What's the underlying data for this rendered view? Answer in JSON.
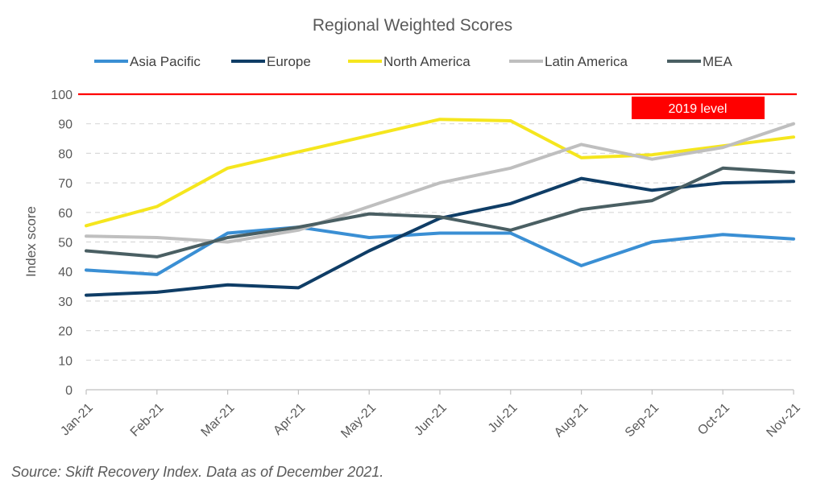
{
  "chart_data": {
    "type": "line",
    "title": "Regional Weighted Scores",
    "ylabel": "Index score",
    "xlabel": "",
    "ylim": [
      0,
      100
    ],
    "yticks": [
      0,
      10,
      20,
      30,
      40,
      50,
      60,
      70,
      80,
      90,
      100
    ],
    "grid": true,
    "legend_position": "top",
    "categories": [
      "Jan-21",
      "Feb-21",
      "Mar-21",
      "Apr-21",
      "May-21",
      "Jun-21",
      "Jul-21",
      "Aug-21",
      "Sep-21",
      "Oct-21",
      "Nov-21"
    ],
    "series": [
      {
        "name": "Asia Pacific",
        "color": "#3a8fd4",
        "values": [
          40.5,
          39,
          53,
          55,
          51.5,
          53,
          53,
          42,
          50,
          52.5,
          51
        ]
      },
      {
        "name": "Europe",
        "color": "#0f3d66",
        "values": [
          32,
          33,
          35.5,
          34.5,
          47,
          58,
          63,
          71.5,
          67.5,
          70,
          70.5
        ]
      },
      {
        "name": "North America",
        "color": "#f5e61e",
        "values": [
          55.5,
          62,
          75,
          80.5,
          86,
          91.5,
          91,
          78.5,
          79.5,
          82.5,
          85.5
        ]
      },
      {
        "name": "Latin America",
        "color": "#bfbfbf",
        "values": [
          52,
          51.5,
          50,
          54,
          62,
          70,
          75,
          83,
          78,
          82,
          90
        ]
      },
      {
        "name": "MEA",
        "color": "#4a5f63",
        "values": [
          47,
          45,
          51.5,
          55,
          59.5,
          58.5,
          54,
          61,
          64,
          75,
          73.5
        ]
      }
    ],
    "reference_line": {
      "value": 100,
      "label": "2019 level",
      "color": "#ff0000"
    }
  },
  "source_note": "Source: Skift Recovery Index. Data as of December 2021."
}
